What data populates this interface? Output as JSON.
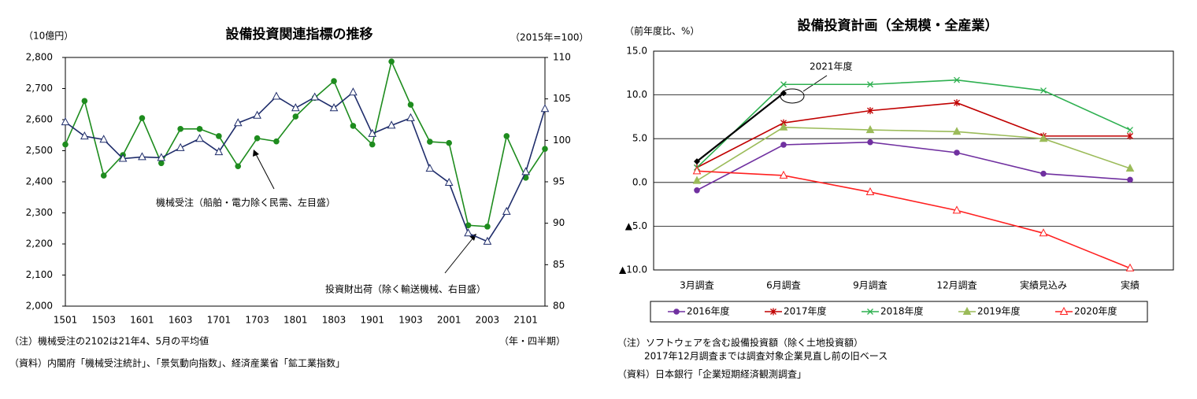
{
  "chart_data": [
    {
      "type": "line",
      "title": "設備投資関連指標の推移",
      "y_label": "（10億円）",
      "y2_label": "（2015年=100）",
      "x_label": "（年・四半期）",
      "categories": [
        "1501",
        null,
        "1503",
        null,
        "1601",
        null,
        "1603",
        null,
        "1701",
        null,
        "1703",
        null,
        "1801",
        null,
        "1803",
        null,
        "1901",
        null,
        "1903",
        null,
        "2001",
        null,
        "2003",
        null,
        "2101",
        null
      ],
      "series": [
        {
          "name": "機械受注（船舶・電力除く民需、左目盛）",
          "color": "#1e8c1e",
          "marker": "circle",
          "values": [
            2520,
            2660,
            2420,
            2486,
            2605,
            2460,
            2570,
            2570,
            2547,
            2450,
            2540,
            2530,
            2610,
            2670,
            2724,
            2580,
            2520,
            2787,
            2648,
            2529,
            2525,
            2260,
            2256,
            2547,
            2413,
            2506
          ]
        },
        {
          "name": "投資財出荷（除く輸送機械、右目盛）",
          "color": "#1f2d6b",
          "marker": "triangle-open",
          "axis": "y2",
          "values": [
            102.2,
            100.5,
            100.1,
            97.8,
            98.0,
            97.9,
            99.1,
            100.2,
            98.6,
            102.1,
            103.0,
            105.3,
            103.9,
            105.2,
            103.9,
            105.8,
            100.8,
            101.8,
            102.7,
            96.6,
            94.9,
            88.8,
            87.8,
            91.4,
            96.2,
            103.8
          ]
        }
      ],
      "ylim": [
        2000,
        2800
      ],
      "yticks": [
        {
          "value": 2000,
          "label": "2,000"
        },
        {
          "value": 2100,
          "label": "2,100"
        },
        {
          "value": 2200,
          "label": "2,200"
        },
        {
          "value": 2300,
          "label": "2,300"
        },
        {
          "value": 2400,
          "label": "2,400"
        },
        {
          "value": 2500,
          "label": "2,500"
        },
        {
          "value": 2600,
          "label": "2,600"
        },
        {
          "value": 2700,
          "label": "2,700"
        },
        {
          "value": 2800,
          "label": "2,800"
        }
      ],
      "y2lim": [
        80,
        110
      ],
      "y2ticks": [
        80,
        85,
        90,
        95,
        100,
        105,
        110
      ],
      "grid": false,
      "notes": [
        "（注）機械受注の2102は21年4、5月の平均値",
        "（資料）内閣府「機械受注統計」、「景気動向指数」、経済産業省「鉱工業指数」"
      ]
    },
    {
      "type": "line",
      "title": "設備投資計画（全規模・全産業）",
      "y_label": "（前年度比、%）",
      "categories": [
        "3月調査",
        "6月調査",
        "9月調査",
        "12月調査",
        "実績見込み",
        "実績"
      ],
      "series": [
        {
          "name": "2016年度",
          "color": "#7030a0",
          "marker": "circle",
          "values": [
            -0.9,
            4.3,
            4.6,
            3.4,
            1.0,
            0.3
          ]
        },
        {
          "name": "2017年度",
          "color": "#c00000",
          "marker": "asterisk",
          "values": [
            1.7,
            6.8,
            8.2,
            9.1,
            5.3,
            5.3
          ]
        },
        {
          "name": "2018年度",
          "color": "#2eb050",
          "marker": "x",
          "values": [
            1.7,
            11.2,
            11.2,
            11.7,
            10.5,
            6.0
          ]
        },
        {
          "name": "2019年度",
          "color": "#9bbb59",
          "marker": "triangle",
          "values": [
            0.2,
            6.3,
            6.0,
            5.8,
            5.0,
            1.6
          ]
        },
        {
          "name": "2020年度",
          "color": "#ff2020",
          "marker": "triangle-open",
          "values": [
            1.3,
            0.8,
            -1.1,
            -3.2,
            -5.8,
            -9.8
          ]
        },
        {
          "name": "2021年度",
          "color": "#000000",
          "marker": "diamond",
          "in_legend": false,
          "values": [
            2.4,
            10.2,
            null,
            null,
            null,
            null
          ]
        }
      ],
      "ylim": [
        -10,
        15
      ],
      "yticks": [
        {
          "value": -10,
          "label": "▲10.0"
        },
        {
          "value": -5,
          "label": "▲5.0"
        },
        {
          "value": 0,
          "label": "0.0"
        },
        {
          "value": 5,
          "label": "5.0"
        },
        {
          "value": 10,
          "label": "10.0"
        },
        {
          "value": 15,
          "label": "15.0"
        }
      ],
      "grid": true,
      "legend": "bottom",
      "notes": [
        "（注）ソフトウェアを含む設備投資額（除く土地投資額）",
        "2017年12月調査までは調査対象企業見直し前の旧ベース",
        "（資料）日本銀行「企業短期経済観測調査」"
      ]
    }
  ]
}
